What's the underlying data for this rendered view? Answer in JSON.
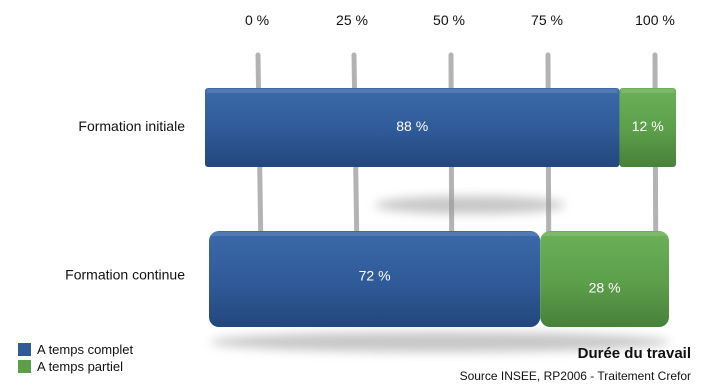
{
  "chart_data": {
    "type": "bar",
    "orientation": "horizontal",
    "stacked": true,
    "title": "Durée du travail",
    "source": "Source INSEE, RP2006  -  Traitement Crefor",
    "categories": [
      "Formation initiale",
      "Formation continue"
    ],
    "series": [
      {
        "name": "A temps complet",
        "color": "#2f5a98",
        "values": [
          88,
          72
        ],
        "labels": [
          "88 %",
          "72 %"
        ]
      },
      {
        "name": "A temps partiel",
        "color": "#5c9e4a",
        "values": [
          12,
          28
        ],
        "labels": [
          "12 %",
          "28 %"
        ]
      }
    ],
    "xlim": [
      0,
      100
    ],
    "xticks": [
      0,
      25,
      50,
      75,
      100
    ],
    "xtick_labels": [
      "0 %",
      "25 %",
      "50 %",
      "75 %",
      "100 %"
    ],
    "x_axis_position": "top",
    "legend_position": "bottom-left"
  }
}
